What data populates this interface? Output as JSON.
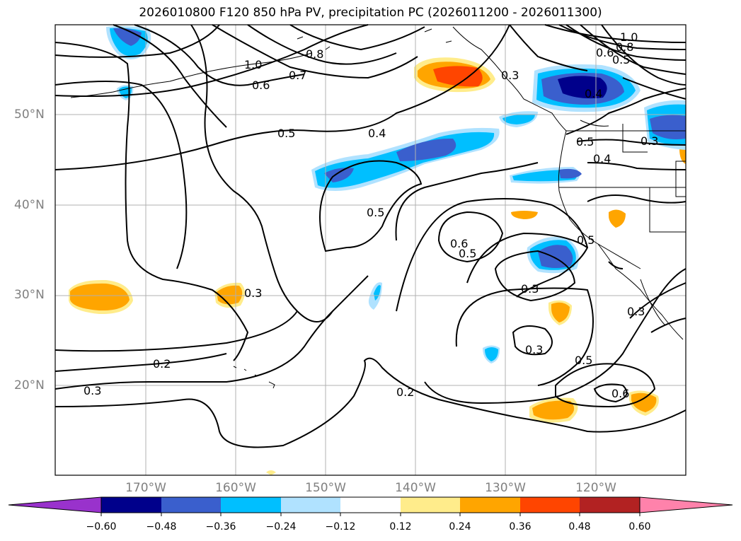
{
  "title": "2026010800 F120 850 hPa PV, precipitation PC (2026011200 - 2026011300)",
  "map": {
    "lat_labels": [
      "50°N",
      "40°N",
      "30°N",
      "20°N"
    ],
    "lon_labels": [
      "170°W",
      "160°W",
      "150°W",
      "140°W",
      "130°W",
      "120°W"
    ],
    "contour_labels": [
      "1.0",
      "0.8",
      "0.7",
      "0.6",
      "0.5",
      "0.4",
      "0.5",
      "0.6",
      "0.5",
      "0.3",
      "0.3",
      "0.2",
      "0.3",
      "0.2",
      "0.3",
      "0.3",
      "0.5",
      "0.6",
      "0.4",
      "1.0",
      "0.8",
      "0.6",
      "0.5",
      "0.5",
      "0.4",
      "0.5",
      "0.3",
      "0.3"
    ]
  },
  "colorbar": {
    "ticks": [
      "−0.60",
      "−0.48",
      "−0.36",
      "−0.24",
      "−0.12",
      "0.12",
      "0.24",
      "0.36",
      "0.48",
      "0.60"
    ],
    "colors": [
      "#9932cc",
      "#00008b",
      "#3a5fcd",
      "#00bfff",
      "#b0e2ff",
      "#ffffff",
      "#ffec8b",
      "#ffa500",
      "#ff4500",
      "#b22222",
      "#ff82ab"
    ]
  }
}
